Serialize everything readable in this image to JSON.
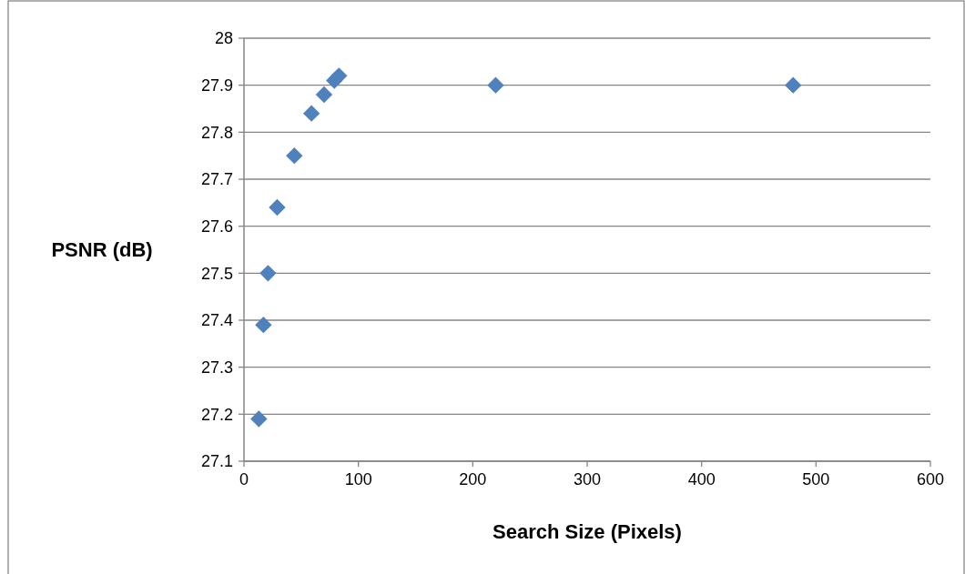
{
  "chart_data": {
    "type": "scatter",
    "xlabel": "Search Size (Pixels)",
    "ylabel": "PSNR (dB)",
    "x": [
      13,
      17,
      21,
      29,
      44,
      59,
      70,
      79,
      83,
      220,
      480
    ],
    "series": [
      {
        "color": "#4f81bd",
        "values": [
          27.19,
          27.39,
          27.5,
          27.64,
          27.75,
          27.84,
          27.88,
          27.91,
          27.92,
          27.9,
          27.9
        ]
      }
    ],
    "xlim": [
      0,
      600
    ],
    "xticks": [
      0,
      100,
      200,
      300,
      400,
      500,
      600
    ],
    "ylim": [
      27.1,
      28
    ],
    "yticks": [
      27.1,
      27.2,
      27.3,
      27.4,
      27.5,
      27.6,
      27.7,
      27.8,
      27.9,
      28
    ],
    "grid": "y",
    "marker": "diamond"
  }
}
